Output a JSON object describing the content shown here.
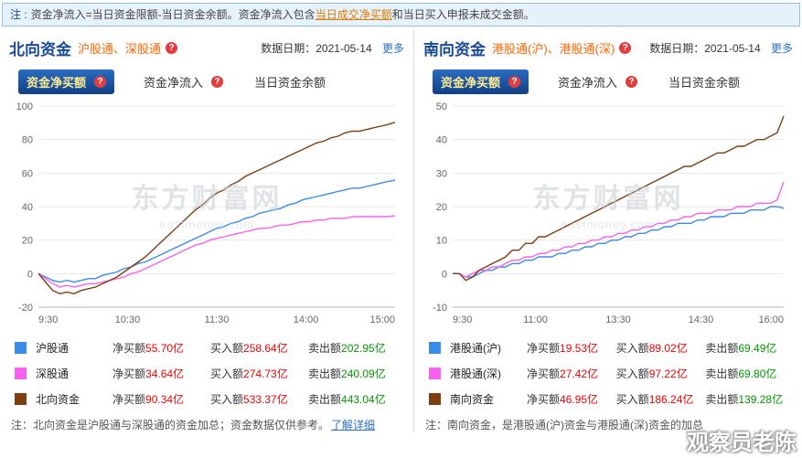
{
  "icons": {
    "help": "?"
  },
  "colors": {
    "accent_blue": "#3b8ce8",
    "accent_magenta": "#f961ef",
    "accent_brown": "#7d3e11",
    "value_red": "#f00000",
    "value_green": "#009900",
    "tab_active_bg": "#174f9e",
    "tab_active_text": "#ffec8f",
    "link_blue": "#2a6fc9",
    "subtitle_orange": "#ff6600",
    "help_red": "#e23c3c"
  },
  "page": {
    "watermark_brand": "东方财富网",
    "watermark_url": "eastmoney.com",
    "corner_watermark": "观察员老陈"
  },
  "top_note": {
    "label": "注 :",
    "text_before": "资金净流入=当日资金限额-当日资金余额。资金净流入包含",
    "link": "当日成交净买额",
    "text_after": "和当日买入申报未成交金额。"
  },
  "panels": [
    {
      "title": "北向资金",
      "subtitle": "沪股通、深股通",
      "date_label": "数据日期：",
      "date_value": "2021-05-14",
      "more_link": "更多",
      "tabs": [
        {
          "label": "资金净买额",
          "active": true
        },
        {
          "label": "资金净流入",
          "active": false
        },
        {
          "label": "当日资金余额",
          "active": false
        }
      ],
      "legend": [
        {
          "name": "沪股通",
          "color": "#3b8ce8",
          "net_label": "净买额",
          "net_value": "55.70亿",
          "buy_label": "买入额",
          "buy_value": "258.64亿",
          "sell_label": "卖出额",
          "sell_value": "202.95亿"
        },
        {
          "name": "深股通",
          "color": "#f961ef",
          "net_label": "净买额",
          "net_value": "34.64亿",
          "buy_label": "买入额",
          "buy_value": "274.73亿",
          "sell_label": "卖出额",
          "sell_value": "240.09亿"
        },
        {
          "name": "北向资金",
          "color": "#7d3e11",
          "net_label": "净买额",
          "net_value": "90.34亿",
          "buy_label": "买入额",
          "buy_value": "533.37亿",
          "sell_label": "卖出额",
          "sell_value": "443.04亿"
        }
      ],
      "foot_note": "注：北向资金是沪股通与深股通的资金加总；资金数据仅供参考。",
      "foot_link": "了解详细"
    },
    {
      "title": "南向资金",
      "subtitle": "港股通(沪)、港股通(深)",
      "date_label": "数据日期：",
      "date_value": "2021-05-14",
      "more_link": "更多",
      "tabs": [
        {
          "label": "资金净买额",
          "active": true
        },
        {
          "label": "资金净流入",
          "active": false
        },
        {
          "label": "当日资金余额",
          "active": false
        }
      ],
      "legend": [
        {
          "name": "港股通(沪)",
          "color": "#3b8ce8",
          "net_label": "净买额",
          "net_value": "19.53亿",
          "buy_label": "买入额",
          "buy_value": "89.02亿",
          "sell_label": "卖出额",
          "sell_value": "69.49亿"
        },
        {
          "name": "港股通(深)",
          "color": "#f961ef",
          "net_label": "净买额",
          "net_value": "27.42亿",
          "buy_label": "买入额",
          "buy_value": "97.22亿",
          "sell_label": "卖出额",
          "sell_value": "69.80亿"
        },
        {
          "name": "南向资金",
          "color": "#7d3e11",
          "net_label": "净买额",
          "net_value": "46.95亿",
          "buy_label": "买入额",
          "buy_value": "186.24亿",
          "sell_label": "卖出额",
          "sell_value": "139.28亿"
        }
      ],
      "foot_note": "注：南向资金，是港股通(沪)资金与港股通(深)资金的加总",
      "foot_link": ""
    }
  ],
  "chart_data": [
    {
      "type": "line",
      "title": "北向资金 资金净买额（亿元）",
      "x_ticks": [
        "9:30",
        "10:30",
        "11:30",
        "14:00",
        "15:00"
      ],
      "ylim": [
        -20,
        100
      ],
      "y_ticks": [
        100,
        80,
        60,
        40,
        20,
        0,
        -20
      ],
      "grid": true,
      "legend_position": "bottom",
      "series": [
        {
          "name": "沪股通",
          "color": "#3b8ce8",
          "values": [
            0,
            -2,
            -4,
            -5,
            -4,
            -5,
            -4,
            -3,
            -3,
            -1,
            0,
            1,
            3,
            4,
            6,
            7,
            9,
            11,
            13,
            15,
            17,
            19,
            21,
            23,
            25,
            27,
            28,
            30,
            31,
            33,
            34,
            36,
            37,
            38,
            39,
            41,
            42,
            44,
            45,
            46,
            47,
            48,
            49,
            50,
            51,
            51,
            52,
            53,
            54,
            55,
            55.7
          ]
        },
        {
          "name": "深股通",
          "color": "#f961ef",
          "values": [
            0,
            -3,
            -6,
            -8,
            -7,
            -8,
            -7,
            -6,
            -6,
            -5,
            -4,
            -3,
            -2,
            0,
            1,
            3,
            5,
            7,
            9,
            11,
            13,
            15,
            17,
            18,
            20,
            21,
            22,
            23,
            24,
            25,
            26,
            27,
            27,
            28,
            29,
            29,
            30,
            31,
            31,
            32,
            32,
            33,
            33,
            33,
            34,
            34,
            34,
            34,
            34,
            34,
            34.6
          ]
        },
        {
          "name": "北向资金",
          "color": "#7d3e11",
          "values": [
            0,
            -5,
            -10,
            -12,
            -11,
            -12,
            -10,
            -9,
            -8,
            -6,
            -4,
            -2,
            1,
            4,
            7,
            10,
            14,
            18,
            22,
            26,
            30,
            34,
            38,
            41,
            45,
            48,
            50,
            53,
            55,
            58,
            60,
            62,
            64,
            66,
            68,
            70,
            72,
            74,
            76,
            78,
            79,
            81,
            82,
            84,
            85,
            85,
            86,
            87,
            88,
            89,
            90.3
          ]
        }
      ]
    },
    {
      "type": "line",
      "title": "南向资金 资金净买额（亿元）",
      "x_ticks": [
        "9:30",
        "11:00",
        "13:30",
        "14:30",
        "16:00"
      ],
      "ylim": [
        -10,
        50
      ],
      "y_ticks": [
        50,
        40,
        30,
        20,
        10,
        0,
        -10
      ],
      "grid": true,
      "legend_position": "bottom",
      "series": [
        {
          "name": "港股通(沪)",
          "color": "#3b8ce8",
          "values": [
            0,
            0,
            -1,
            -1,
            0,
            1,
            1,
            2,
            2,
            3,
            3,
            4,
            4,
            5,
            5,
            5,
            6,
            6,
            7,
            7,
            8,
            8,
            9,
            9,
            10,
            10,
            11,
            11,
            12,
            12,
            13,
            13,
            14,
            14,
            15,
            15,
            15,
            16,
            16,
            17,
            17,
            17,
            18,
            18,
            18,
            19,
            19,
            19,
            20,
            20,
            19.5
          ]
        },
        {
          "name": "港股通(深)",
          "color": "#f961ef",
          "values": [
            0,
            0,
            -1,
            0,
            1,
            1,
            2,
            2,
            3,
            4,
            4,
            5,
            5,
            6,
            6,
            7,
            7,
            8,
            8,
            9,
            9,
            10,
            10,
            11,
            11,
            12,
            12,
            13,
            13,
            14,
            14,
            15,
            15,
            16,
            16,
            17,
            17,
            18,
            18,
            18,
            19,
            19,
            19,
            20,
            20,
            20,
            21,
            21,
            21,
            22,
            27.4
          ]
        },
        {
          "name": "南向资金",
          "color": "#7d3e11",
          "values": [
            0,
            0,
            -2,
            -1,
            1,
            2,
            3,
            4,
            5,
            7,
            7,
            9,
            9,
            11,
            11,
            12,
            13,
            14,
            15,
            16,
            17,
            18,
            19,
            20,
            21,
            22,
            23,
            24,
            25,
            26,
            27,
            28,
            29,
            30,
            31,
            32,
            32,
            33,
            34,
            35,
            36,
            36,
            37,
            38,
            38,
            39,
            40,
            40,
            41,
            42,
            47.0
          ]
        }
      ]
    }
  ]
}
